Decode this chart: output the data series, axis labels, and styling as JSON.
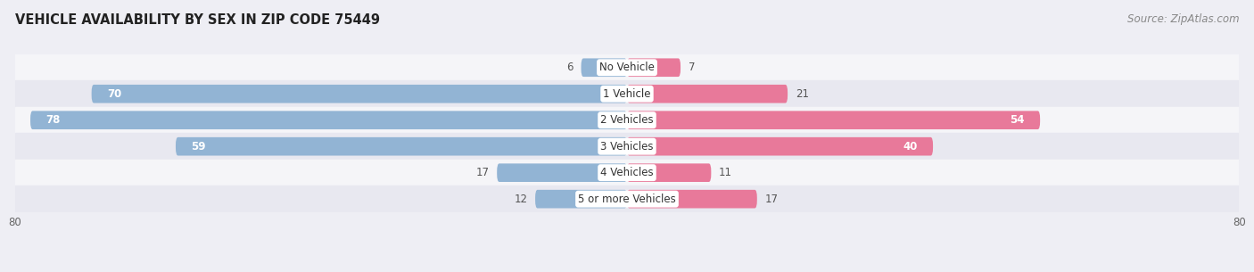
{
  "title": "VEHICLE AVAILABILITY BY SEX IN ZIP CODE 75449",
  "source": "Source: ZipAtlas.com",
  "categories": [
    "No Vehicle",
    "1 Vehicle",
    "2 Vehicles",
    "3 Vehicles",
    "4 Vehicles",
    "5 or more Vehicles"
  ],
  "male_values": [
    6,
    70,
    78,
    59,
    17,
    12
  ],
  "female_values": [
    7,
    21,
    54,
    40,
    11,
    17
  ],
  "male_color": "#92b4d4",
  "female_color": "#e8799a",
  "bg_color": "#eeeef4",
  "row_colors": [
    "#f5f5f8",
    "#e8e8f0"
  ],
  "xlim": 80,
  "title_fontsize": 10.5,
  "source_fontsize": 8.5,
  "label_fontsize": 8.5,
  "value_fontsize": 8.5
}
